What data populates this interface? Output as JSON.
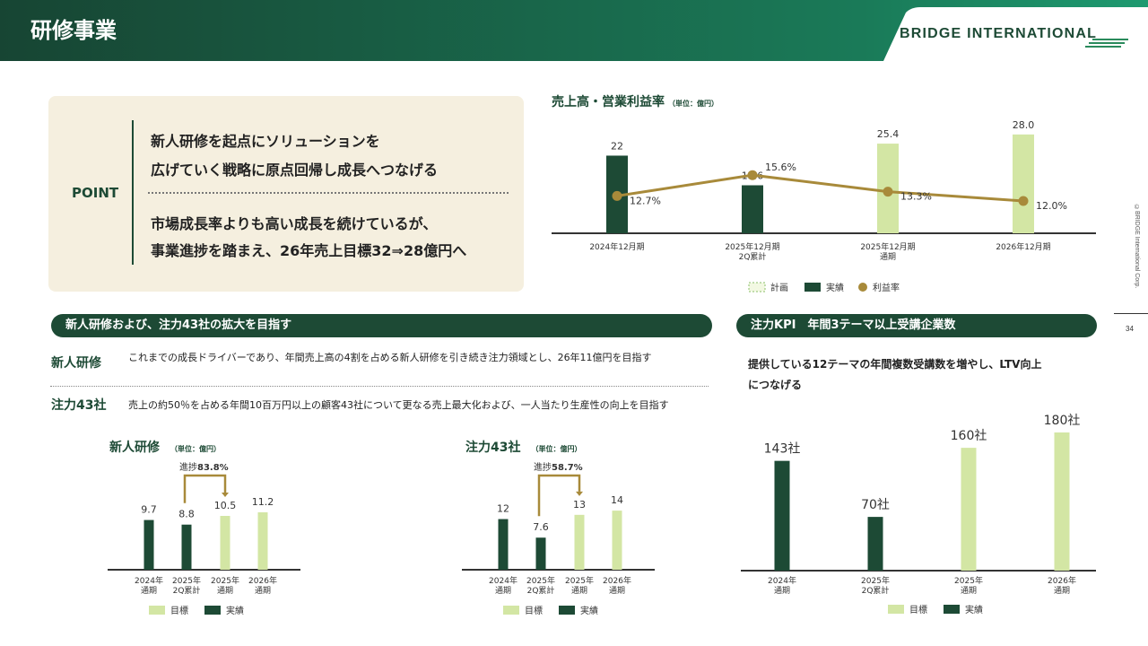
{
  "header": {
    "title": "研修事業",
    "logo": "BRIDGE INTERNATIONAL"
  },
  "copyright": "©BRIDGE International Corp.",
  "page_number": "34",
  "point": {
    "label": "POINT",
    "line1": "新人研修を起点にソリューションを",
    "line2": "広げていく戦略に原点回帰し成長へつなげる",
    "line3": "市場成長率よりも高い成長を続けているが、",
    "line4": "事業進捗を踏まえ、26年売上目標32⇒28億円へ"
  },
  "colors": {
    "dark_green": "#1d4a35",
    "light_green": "#d3e6a4",
    "gold": "#a88a3a"
  },
  "sales_chart_title": "売上高・営業利益率",
  "sales_chart_unit": "（単位：億円）",
  "section_left": {
    "title": "新人研修および、注力43社の拡大を目指す",
    "rows": [
      {
        "label": "新人研修",
        "text": "これまでの成長ドライバーであり、年間売上高の4割を占める新人研修を引き続き注力領域とし、26年11億円を目指す"
      },
      {
        "label": "注力43社",
        "text": "売上の約50％を占める年間10百万円以上の顧客43社について更なる売上最大化および、一人当たり生産性の向上を目指す"
      }
    ]
  },
  "section_right": {
    "title": "注力KPI　年間3テーマ以上受講企業数",
    "desc_line1": "提供している12テーマの年間複数受講数を増やし、LTV向上",
    "desc_line2": "につなげる"
  },
  "newhire_chart_title": "新人研修",
  "newhire_chart_unit": "（単位：億円）",
  "focus_chart_title": "注力43社",
  "focus_chart_unit": "（単位：億円）",
  "chart_data": [
    {
      "type": "bar",
      "title": "売上高・営業利益率",
      "unit": "（単位：億円）",
      "categories": [
        "2024年12月期",
        "2025年12月期\n2Q累計",
        "2025年12月期\n通期",
        "2026年12月期"
      ],
      "values": [
        22,
        13.6,
        25.4,
        28.0
      ],
      "value_labels": [
        "22",
        "13.6",
        "25.4",
        "28.0"
      ],
      "bar_kind": [
        "実績",
        "実績",
        "計画",
        "計画"
      ],
      "line_series": {
        "name": "利益率",
        "values": [
          12.7,
          15.6,
          13.3,
          12.0
        ],
        "labels": [
          "12.7%",
          "15.6%",
          "13.3%",
          "12.0%"
        ]
      },
      "legend": [
        "計画",
        "実績",
        "利益率"
      ]
    },
    {
      "type": "bar",
      "title": "新人研修",
      "unit": "（単位：億円）",
      "categories": [
        "2024年\n通期",
        "2025年\n2Q累計",
        "2025年\n通期",
        "2026年\n通期"
      ],
      "values": [
        9.7,
        8.8,
        10.5,
        11.2
      ],
      "value_labels": [
        "9.7",
        "8.8",
        "10.5",
        "11.2"
      ],
      "bar_kind": [
        "実績",
        "実績",
        "目標",
        "目標"
      ],
      "progress_prefix": "進捗",
      "progress": "83.8%",
      "legend": [
        "目標",
        "実績"
      ]
    },
    {
      "type": "bar",
      "title": "注力43社",
      "unit": "（単位：億円）",
      "categories": [
        "2024年\n通期",
        "2025年\n2Q累計",
        "2025年\n通期",
        "2026年\n通期"
      ],
      "values": [
        12,
        7.6,
        13,
        14
      ],
      "value_labels": [
        "12",
        "7.6",
        "13",
        "14"
      ],
      "bar_kind": [
        "実績",
        "実績",
        "目標",
        "目標"
      ],
      "progress_prefix": "進捗",
      "progress": "58.7%",
      "legend": [
        "目標",
        "実績"
      ]
    },
    {
      "type": "bar",
      "title": "注力KPI　年間3テーマ以上受講企業数",
      "categories": [
        "2024年\n通期",
        "2025年\n2Q累計",
        "2025年\n通期",
        "2026年\n通期"
      ],
      "values": [
        143,
        70,
        160,
        180
      ],
      "value_labels": [
        "143社",
        "70社",
        "160社",
        "180社"
      ],
      "bar_kind": [
        "実績",
        "実績",
        "目標",
        "目標"
      ],
      "legend": [
        "目標",
        "実績"
      ]
    }
  ]
}
